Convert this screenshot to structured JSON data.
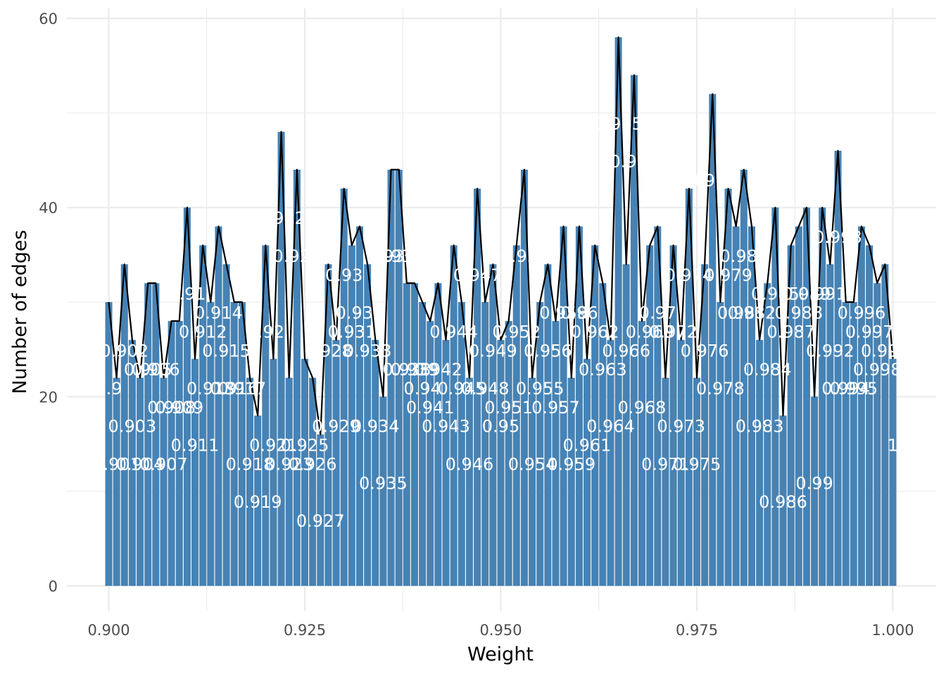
{
  "chart_data": {
    "type": "bar",
    "xlabel": "Weight",
    "ylabel": "Number of edges",
    "x_ticks": [
      "0.900",
      "0.925",
      "0.950",
      "0.975",
      "1.000"
    ],
    "y_ticks": [
      "0",
      "20",
      "40",
      "60"
    ],
    "xlim": [
      0.895,
      1.005
    ],
    "ylim": [
      0,
      60
    ],
    "grid": true,
    "bar_color": "#4682b4",
    "line_color": "#000000",
    "label_color": "#ffffff",
    "x": [
      0.9,
      0.901,
      0.902,
      0.903,
      0.904,
      0.905,
      0.906,
      0.907,
      0.908,
      0.909,
      0.91,
      0.911,
      0.912,
      0.913,
      0.914,
      0.915,
      0.916,
      0.917,
      0.918,
      0.919,
      0.92,
      0.921,
      0.922,
      0.923,
      0.924,
      0.925,
      0.926,
      0.927,
      0.928,
      0.929,
      0.93,
      0.931,
      0.932,
      0.933,
      0.934,
      0.935,
      0.936,
      0.937,
      0.938,
      0.939,
      0.94,
      0.941,
      0.942,
      0.943,
      0.944,
      0.945,
      0.946,
      0.947,
      0.948,
      0.949,
      0.95,
      0.951,
      0.952,
      0.953,
      0.954,
      0.955,
      0.956,
      0.957,
      0.958,
      0.959,
      0.96,
      0.961,
      0.962,
      0.963,
      0.964,
      0.965,
      0.966,
      0.967,
      0.968,
      0.969,
      0.97,
      0.971,
      0.972,
      0.973,
      0.974,
      0.975,
      0.976,
      0.977,
      0.978,
      0.979,
      0.98,
      0.981,
      0.982,
      0.983,
      0.984,
      0.985,
      0.986,
      0.987,
      0.988,
      0.989,
      0.99,
      0.991,
      0.992,
      0.993,
      0.994,
      0.995,
      0.996,
      0.997,
      0.998,
      0.999,
      1.0
    ],
    "values": [
      30,
      22,
      34,
      26,
      22,
      32,
      32,
      22,
      28,
      28,
      40,
      24,
      36,
      30,
      38,
      34,
      30,
      30,
      22,
      18,
      36,
      24,
      48,
      22,
      44,
      24,
      22,
      16,
      34,
      26,
      42,
      36,
      38,
      34,
      26,
      20,
      44,
      44,
      32,
      32,
      30,
      28,
      32,
      26,
      36,
      30,
      22,
      42,
      30,
      34,
      26,
      28,
      36,
      44,
      22,
      30,
      34,
      28,
      38,
      22,
      38,
      24,
      36,
      32,
      26,
      58,
      34,
      54,
      28,
      36,
      38,
      22,
      36,
      26,
      42,
      22,
      34,
      52,
      30,
      42,
      38,
      44,
      38,
      26,
      32,
      40,
      18,
      36,
      38,
      40,
      20,
      40,
      34,
      46,
      30,
      30,
      38,
      36,
      32,
      34,
      24
    ],
    "bar_labels": [
      "0.9",
      "0.901",
      "0.902",
      "0.903",
      "0.904",
      "0.905",
      "0.906",
      "0.907",
      "0.908",
      "0.909",
      "0.91",
      "0.911",
      "0.912",
      "0.913",
      "0.914",
      "0.915",
      "0.916",
      "0.917",
      "0.918",
      "0.919",
      "0.92",
      "0.921",
      "0.922",
      "0.923",
      "0.924",
      "0.925",
      "0.926",
      "0.927",
      "0.928",
      "0.929",
      "0.93",
      "0.931",
      "0.932",
      "0.933",
      "0.934",
      "0.935",
      "0.936",
      "0.937",
      "0.938",
      "0.939",
      "0.94",
      "0.941",
      "0.942",
      "0.943",
      "0.944",
      "0.945",
      "0.946",
      "0.947",
      "0.948",
      "0.949",
      "0.95",
      "0.951",
      "0.952",
      "0.953",
      "0.954",
      "0.955",
      "0.956",
      "0.957",
      "0.958",
      "0.959",
      "0.96",
      "0.961",
      "0.962",
      "0.963",
      "0.964",
      "0.965",
      "0.966",
      "0.967",
      "0.968",
      "0.969",
      "0.97",
      "0.971",
      "0.972",
      "0.973",
      "0.974",
      "0.975",
      "0.976",
      "0.977",
      "0.978",
      "0.979",
      "0.98",
      "0.981",
      "0.982",
      "0.983",
      "0.984",
      "0.985",
      "0.986",
      "0.987",
      "0.988",
      "0.989",
      "0.99",
      "0.991",
      "0.992",
      "0.993",
      "0.994",
      "0.995",
      "0.996",
      "0.997",
      "0.998",
      "0.999",
      "1"
    ],
    "line_series": "same as values"
  }
}
